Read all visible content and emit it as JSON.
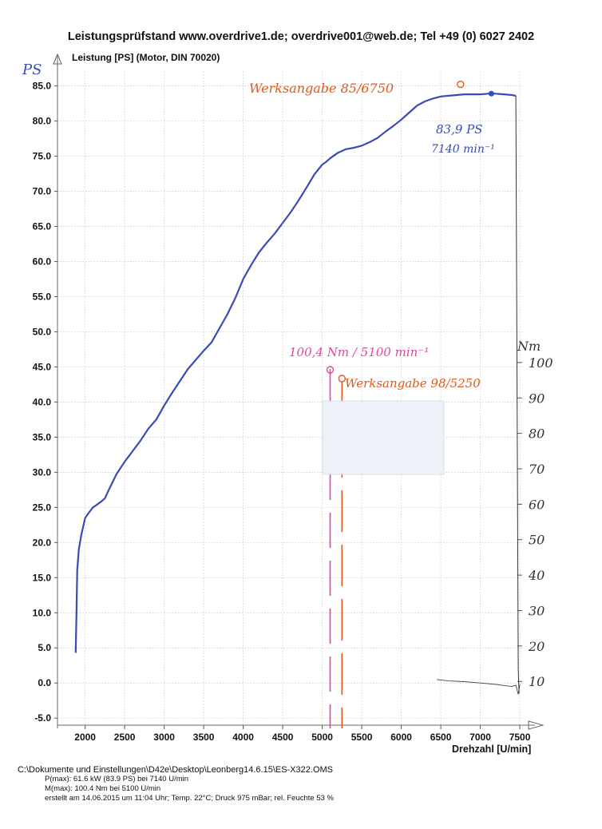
{
  "header": {
    "title": "Leistungsprüfstand www.overdrive1.de; overdrive001@web.de; Tel +49 (0) 6027 2402"
  },
  "chart_data": {
    "type": "line",
    "title": "Leistung [PS] (Motor, DIN 70020)",
    "ylabel": "PS",
    "xlabel": "Drehzahl [U/min]",
    "y2label": "Nm",
    "xlim": [
      1650,
      7550
    ],
    "ylim": [
      -6,
      87
    ],
    "y2lim": [
      0,
      110
    ],
    "grid": true,
    "x_ticks": [
      2000,
      2500,
      3000,
      3500,
      4000,
      4500,
      5000,
      5500,
      6000,
      6500,
      7000,
      7500
    ],
    "y_ticks": [
      "85.0",
      "80.0",
      "75.0",
      "70.0",
      "65.0",
      "60.0",
      "55.0",
      "50.0",
      "45.0",
      "40.0",
      "35.0",
      "30.0",
      "25.0",
      "20.0",
      "15.0",
      "10.0",
      "5.0",
      "0.0",
      "-5.0"
    ],
    "y2_ticks": [
      "100",
      "90",
      "80",
      "70",
      "60",
      "50",
      "40",
      "30",
      "20",
      "10"
    ],
    "series": [
      {
        "color": "#3a4bb5",
        "x": [
          1880,
          1890,
          1900,
          1920,
          1950,
          2000,
          2050,
          2100,
          2150,
          2200,
          2250,
          2300,
          2400,
          2500,
          2600,
          2700,
          2800,
          2900,
          3000,
          3100,
          3200,
          3300,
          3400,
          3500,
          3600,
          3700,
          3800,
          3900,
          4000,
          4100,
          4200,
          4300,
          4400,
          4500,
          4600,
          4700,
          4800,
          4900,
          5000,
          5050,
          5100,
          5200,
          5300,
          5400,
          5500,
          5600,
          5700,
          5800,
          5900,
          6000,
          6100,
          6200,
          6300,
          6400,
          6500,
          6600,
          6700,
          6800,
          6900,
          7000,
          7100,
          7140,
          7200,
          7300,
          7400,
          7450
        ],
        "y": [
          4.3,
          10,
          16,
          19,
          21,
          23.5,
          24.3,
          25,
          25.4,
          25.8,
          26.3,
          27.5,
          29.8,
          31.5,
          33,
          34.5,
          36.2,
          37.5,
          39.5,
          41.3,
          43,
          44.7,
          46,
          47.3,
          48.5,
          50.5,
          52.5,
          54.8,
          57.5,
          59.5,
          61.3,
          62.7,
          64,
          65.5,
          67,
          68.7,
          70.5,
          72.4,
          73.8,
          74.2,
          74.7,
          75.5,
          76,
          76.2,
          76.5,
          77,
          77.6,
          78.5,
          79.3,
          80.2,
          81.2,
          82.2,
          82.8,
          83.2,
          83.5,
          83.6,
          83.7,
          83.8,
          83.8,
          83.8,
          83.9,
          83.9,
          83.9,
          83.8,
          83.7,
          83.6
        ]
      },
      {
        "color": "#444444",
        "x": [
          6450,
          6600,
          6800,
          7000,
          7200,
          7400,
          7450,
          7480,
          7500
        ],
        "y": [
          0.5,
          0.3,
          0.2,
          0,
          -0.2,
          -0.5,
          -0.3,
          -1.6,
          -0.2
        ]
      }
    ],
    "annotations": [
      {
        "text": "Werksangabe 85/6750",
        "x": 6750,
        "y": 85,
        "color": "#e0571d"
      },
      {
        "text": "83,9 PS",
        "color": "#3a4bb5"
      },
      {
        "text": "7140 min⁻¹",
        "color": "#3a4bb5"
      },
      {
        "text": "100,4 Nm / 5100 min⁻¹",
        "x": 5100,
        "y": 100.4,
        "color": "#e0479a"
      },
      {
        "text": "Werksangabe 98/5250",
        "x": 5250,
        "y": 98,
        "color": "#e0571d"
      }
    ]
  },
  "footer": {
    "path": "C:\\Dokumente und Einstellungen\\D42e\\Desktop\\Leonberg14.6.15\\ES-X322.OMS",
    "pmax": "P(max): 61.6 kW (83.9 PS) bei 7140 U/min",
    "mmax": "M(max): 100.4 Nm bei 5100 U/min",
    "info": "erstellt am 14.06.2015 um 11:04 Uhr; Temp. 22°C; Druck 975 mBar; rel. Feuchte 53 %"
  }
}
